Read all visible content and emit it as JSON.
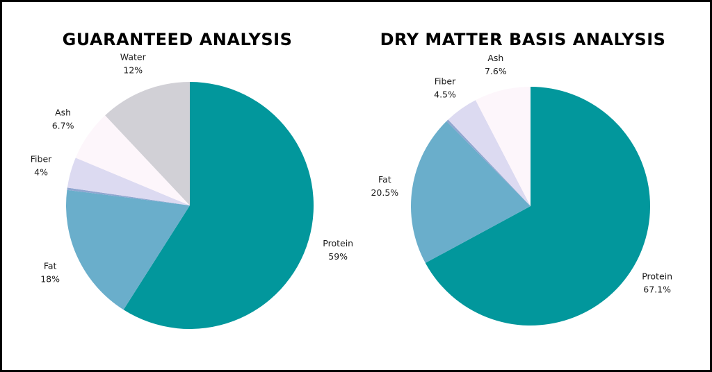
{
  "chart_data": [
    {
      "type": "pie",
      "title": "GUARANTEED ANALYSIS",
      "start": "top",
      "direction": "clockwise",
      "slices": [
        {
          "name": "Protein",
          "value": 59,
          "label": "59%",
          "color": "#02979c"
        },
        {
          "name": "Fat",
          "value": 18,
          "label": "18%",
          "color": "#6aaecb"
        },
        {
          "name": "",
          "value": 0.3,
          "label": "",
          "color": "#8fa6d0"
        },
        {
          "name": "Fiber",
          "value": 4,
          "label": "4%",
          "color": "#dcdaf1"
        },
        {
          "name": "Ash",
          "value": 6.7,
          "label": "6.7%",
          "color": "#fdf6fb"
        },
        {
          "name": "Water",
          "value": 12,
          "label": "12%",
          "color": "#d1d0d6"
        }
      ]
    },
    {
      "type": "pie",
      "title": "DRY MATTER BASIS ANALYSIS",
      "start": "top",
      "direction": "clockwise",
      "slices": [
        {
          "name": "Protein",
          "value": 67.1,
          "label": "67.1%",
          "color": "#02979c"
        },
        {
          "name": "Fat",
          "value": 20.5,
          "label": "20.5%",
          "color": "#6aaecb"
        },
        {
          "name": "",
          "value": 0.3,
          "label": "",
          "color": "#8fa6d0"
        },
        {
          "name": "Fiber",
          "value": 4.5,
          "label": "4.5%",
          "color": "#dcdaf1"
        },
        {
          "name": "Ash",
          "value": 7.6,
          "label": "7.6%",
          "color": "#fdf6fb"
        }
      ]
    }
  ]
}
